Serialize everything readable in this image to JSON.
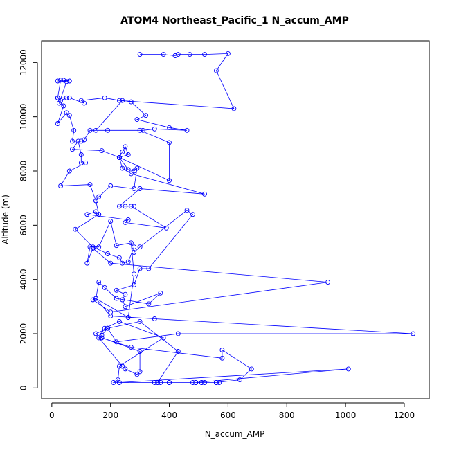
{
  "chart_data": {
    "type": "line",
    "title": "ATOM4 Northeast_Pacific_1 N_accum_AMP",
    "xlabel": "N_accum_AMP",
    "ylabel": "Altitude (m)",
    "xlim": [
      -35,
      1285
    ],
    "ylim": [
      -400,
      12800
    ],
    "x_ticks": [
      "0",
      "200",
      "400",
      "600",
      "800",
      "1000",
      "1200"
    ],
    "y_ticks": [
      "0",
      "2000",
      "4000",
      "6000",
      "8000",
      "10000",
      "12000"
    ],
    "grid": false,
    "legend": "none",
    "series_color": "#0000ff",
    "marker": "open-circle",
    "points": [
      [
        300,
        12300
      ],
      [
        380,
        12300
      ],
      [
        420,
        12250
      ],
      [
        430,
        12300
      ],
      [
        470,
        12300
      ],
      [
        520,
        12300
      ],
      [
        600,
        12330
      ],
      [
        560,
        11700
      ],
      [
        620,
        10300
      ],
      [
        230,
        10600
      ],
      [
        180,
        10700
      ],
      [
        100,
        10600
      ],
      [
        110,
        10500
      ],
      [
        60,
        10700
      ],
      [
        20,
        10700
      ],
      [
        30,
        10600
      ],
      [
        50,
        10700
      ],
      [
        20,
        10700
      ],
      [
        30,
        11350
      ],
      [
        40,
        11350
      ],
      [
        60,
        11320
      ],
      [
        20,
        11320
      ],
      [
        50,
        11300
      ],
      [
        25,
        10500
      ],
      [
        40,
        10400
      ],
      [
        20,
        9750
      ],
      [
        50,
        10150
      ],
      [
        60,
        10050
      ],
      [
        75,
        9500
      ],
      [
        70,
        9100
      ],
      [
        100,
        9100
      ],
      [
        110,
        9150
      ],
      [
        130,
        9500
      ],
      [
        190,
        9500
      ],
      [
        310,
        9500
      ],
      [
        350,
        9550
      ],
      [
        460,
        9500
      ],
      [
        400,
        9600
      ],
      [
        290,
        9900
      ],
      [
        320,
        10050
      ],
      [
        270,
        10550
      ],
      [
        240,
        10600
      ],
      [
        150,
        9500
      ],
      [
        300,
        9500
      ],
      [
        400,
        9050
      ],
      [
        400,
        7650
      ],
      [
        230,
        8500
      ],
      [
        170,
        8750
      ],
      [
        70,
        8800
      ],
      [
        90,
        9100
      ],
      [
        100,
        8600
      ],
      [
        100,
        8300
      ],
      [
        115,
        8300
      ],
      [
        60,
        8000
      ],
      [
        30,
        7450
      ],
      [
        130,
        7500
      ],
      [
        150,
        6900
      ],
      [
        160,
        6400
      ],
      [
        150,
        6500
      ],
      [
        120,
        6400
      ],
      [
        260,
        6200
      ],
      [
        250,
        6100
      ],
      [
        390,
        5900
      ],
      [
        270,
        6700
      ],
      [
        280,
        6700
      ],
      [
        250,
        6700
      ],
      [
        230,
        6700
      ],
      [
        300,
        7350
      ],
      [
        520,
        7150
      ],
      [
        270,
        7900
      ],
      [
        240,
        8100
      ],
      [
        230,
        8500
      ],
      [
        260,
        8600
      ],
      [
        250,
        8900
      ],
      [
        240,
        8700
      ],
      [
        230,
        8500
      ],
      [
        260,
        8050
      ],
      [
        280,
        8000
      ],
      [
        290,
        8100
      ],
      [
        280,
        7350
      ],
      [
        200,
        7450
      ],
      [
        160,
        7050
      ],
      [
        150,
        6900
      ],
      [
        160,
        6400
      ],
      [
        80,
        5850
      ],
      [
        140,
        5200
      ],
      [
        190,
        4950
      ],
      [
        230,
        4800
      ],
      [
        240,
        4600
      ],
      [
        260,
        4650
      ],
      [
        280,
        5200
      ],
      [
        280,
        5000
      ],
      [
        300,
        5200
      ],
      [
        460,
        6550
      ],
      [
        480,
        6400
      ],
      [
        330,
        4400
      ],
      [
        300,
        4400
      ],
      [
        280,
        3800
      ],
      [
        220,
        3600
      ],
      [
        250,
        3450
      ],
      [
        240,
        3250
      ],
      [
        250,
        3000
      ],
      [
        370,
        3500
      ],
      [
        330,
        3100
      ],
      [
        220,
        3300
      ],
      [
        180,
        3700
      ],
      [
        160,
        3900
      ],
      [
        150,
        3300
      ],
      [
        140,
        3250
      ],
      [
        200,
        2800
      ],
      [
        940,
        3900
      ],
      [
        200,
        4600
      ],
      [
        140,
        5150
      ],
      [
        120,
        4600
      ],
      [
        130,
        5200
      ],
      [
        160,
        5200
      ],
      [
        200,
        6150
      ],
      [
        220,
        5250
      ],
      [
        270,
        5350
      ],
      [
        280,
        4200
      ],
      [
        260,
        2600
      ],
      [
        150,
        3300
      ],
      [
        200,
        2650
      ],
      [
        350,
        2550
      ],
      [
        1230,
        2000
      ],
      [
        430,
        2000
      ],
      [
        220,
        1700
      ],
      [
        190,
        2200
      ],
      [
        170,
        1950
      ],
      [
        170,
        1850
      ],
      [
        300,
        1350
      ],
      [
        300,
        600
      ],
      [
        290,
        500
      ],
      [
        250,
        700
      ],
      [
        240,
        800
      ],
      [
        160,
        1850
      ],
      [
        180,
        2200
      ],
      [
        230,
        2450
      ],
      [
        380,
        1850
      ],
      [
        230,
        800
      ],
      [
        225,
        300
      ],
      [
        210,
        200
      ],
      [
        400,
        200
      ],
      [
        370,
        200
      ],
      [
        350,
        200
      ],
      [
        490,
        200
      ],
      [
        1010,
        700
      ],
      [
        230,
        200
      ],
      [
        400,
        200
      ],
      [
        510,
        200
      ],
      [
        570,
        200
      ],
      [
        560,
        200
      ],
      [
        640,
        300
      ],
      [
        680,
        700
      ],
      [
        580,
        1400
      ],
      [
        580,
        1100
      ],
      [
        270,
        1500
      ],
      [
        170,
        1850
      ],
      [
        150,
        2000
      ],
      [
        190,
        2200
      ],
      [
        300,
        2450
      ],
      [
        430,
        1350
      ],
      [
        360,
        200
      ],
      [
        520,
        200
      ],
      [
        490,
        200
      ],
      [
        480,
        200
      ],
      [
        510,
        200
      ],
      [
        560,
        200
      ]
    ]
  }
}
